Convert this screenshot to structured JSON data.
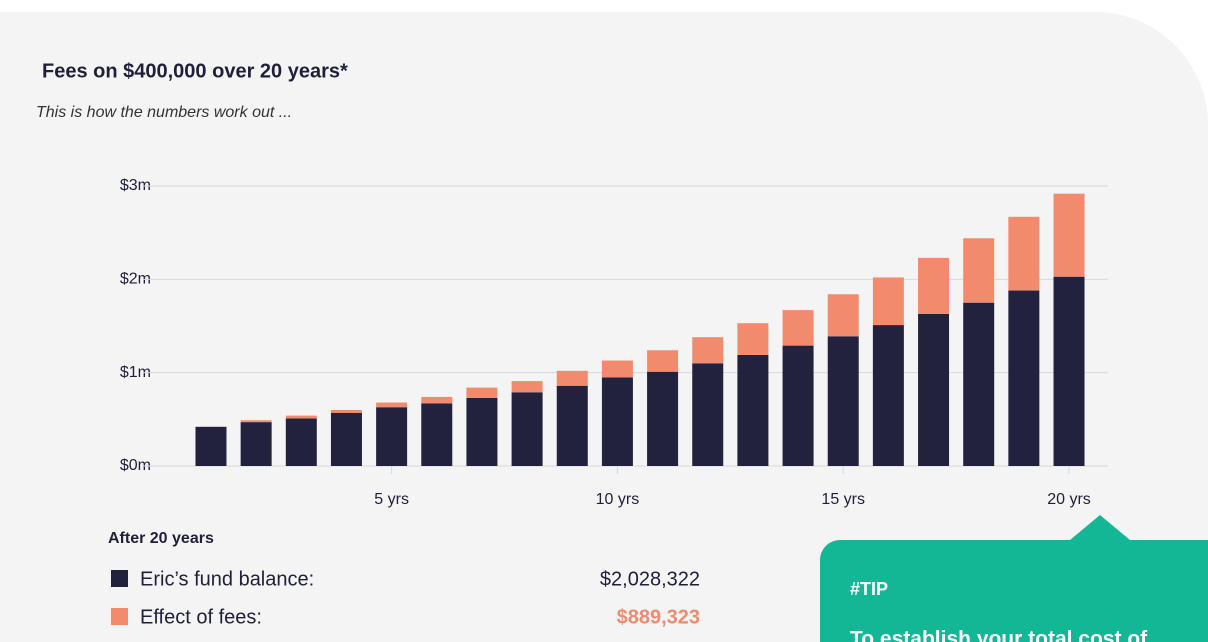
{
  "chart_data": {
    "type": "bar",
    "stacked": true,
    "title": "Fees on $400,000 over 20 years*",
    "subtitle": "This is how the numbers work out ...",
    "categories": [
      null,
      null,
      null,
      null,
      "5 yrs",
      null,
      null,
      null,
      null,
      "10 yrs",
      null,
      null,
      null,
      null,
      "15 yrs",
      null,
      null,
      null,
      null,
      "20 yrs"
    ],
    "series": [
      {
        "name": "Eric’s fund balance:",
        "color": "#22223f",
        "values": [
          420000,
          470000,
          510000,
          570000,
          630000,
          670000,
          730000,
          790000,
          860000,
          950000,
          1010000,
          1100000,
          1190000,
          1290000,
          1390000,
          1510000,
          1630000,
          1750000,
          1880000,
          2028322
        ]
      },
      {
        "name": "Effect of fees:",
        "color": "#f28b6e",
        "values": [
          0,
          20000,
          30000,
          30000,
          50000,
          70000,
          110000,
          120000,
          160000,
          180000,
          230000,
          280000,
          340000,
          380000,
          450000,
          510000,
          600000,
          690000,
          790000,
          889323
        ]
      }
    ],
    "ylim": [
      0,
      3000000
    ],
    "yticks": [
      {
        "value": 0,
        "label": "$0m"
      },
      {
        "value": 1000000,
        "label": "$1m"
      },
      {
        "value": 2000000,
        "label": "$2m"
      },
      {
        "value": 3000000,
        "label": "$3m"
      }
    ],
    "grid": true
  },
  "summary": {
    "heading": "After 20 years",
    "values": [
      "$2,028,322",
      "$889,323"
    ]
  },
  "tip": {
    "heading": "#TIP",
    "text": "To establish your total cost of"
  }
}
